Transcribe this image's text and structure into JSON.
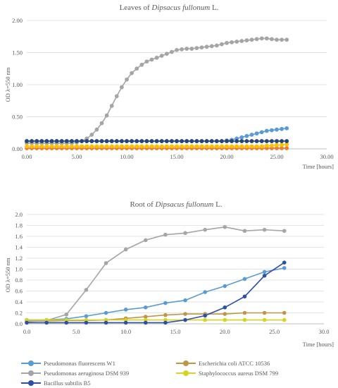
{
  "chart_data": [
    {
      "type": "line",
      "title_prefix": "Leaves of ",
      "title_italic": "Dipsacus fullonum",
      "title_suffix": " L.",
      "xlabel": "Time [hours]",
      "ylabel": "OD λ=550 nm",
      "xlim": [
        0,
        30
      ],
      "ylim": [
        0,
        2
      ],
      "x_ticks": [
        "0.00",
        "5.00",
        "10.00",
        "15.00",
        "20.00",
        "25.00",
        "30.00"
      ],
      "y_ticks": [
        "0.00",
        "0.50",
        "1.00",
        "1.50",
        "2.00"
      ],
      "grid": "horizontal",
      "x": [
        0.0,
        0.5,
        1.0,
        1.5,
        2.0,
        2.5,
        3.0,
        3.5,
        4.0,
        4.5,
        5.0,
        5.5,
        6.0,
        6.5,
        7.0,
        7.5,
        8.0,
        8.5,
        9.0,
        9.5,
        10.0,
        10.5,
        11.0,
        11.5,
        12.0,
        12.5,
        13.0,
        13.5,
        14.0,
        14.5,
        15.0,
        15.5,
        16.0,
        16.5,
        17.0,
        17.5,
        18.0,
        18.5,
        19.0,
        19.5,
        20.0,
        20.5,
        21.0,
        21.5,
        22.0,
        22.5,
        23.0,
        23.5,
        24.0,
        24.5,
        25.0,
        25.5,
        26.0
      ],
      "series": [
        {
          "color": "#5b9bd5",
          "values": [
            0.12,
            0.12,
            0.12,
            0.12,
            0.12,
            0.12,
            0.12,
            0.12,
            0.12,
            0.12,
            0.12,
            0.12,
            0.12,
            0.12,
            0.12,
            0.12,
            0.12,
            0.12,
            0.12,
            0.12,
            0.12,
            0.12,
            0.12,
            0.12,
            0.12,
            0.12,
            0.12,
            0.12,
            0.12,
            0.12,
            0.12,
            0.12,
            0.12,
            0.12,
            0.12,
            0.12,
            0.12,
            0.12,
            0.12,
            0.12,
            0.13,
            0.14,
            0.16,
            0.18,
            0.2,
            0.22,
            0.24,
            0.26,
            0.28,
            0.29,
            0.3,
            0.31,
            0.32
          ]
        },
        {
          "color": "#ed7d31",
          "values": [
            0.01,
            0.01,
            0.01,
            0.01,
            0.01,
            0.01,
            0.01,
            0.01,
            0.01,
            0.01,
            0.01,
            0.01,
            0.01,
            0.01,
            0.01,
            0.01,
            0.01,
            0.01,
            0.01,
            0.01,
            0.01,
            0.01,
            0.01,
            0.01,
            0.01,
            0.01,
            0.01,
            0.01,
            0.01,
            0.01,
            0.01,
            0.01,
            0.01,
            0.01,
            0.01,
            0.01,
            0.01,
            0.01,
            0.01,
            0.01,
            0.01,
            0.01,
            0.01,
            0.01,
            0.01,
            0.01,
            0.01,
            0.01,
            0.01,
            0.01,
            0.01,
            0.01,
            0.01
          ]
        },
        {
          "color": "#a5a5a5",
          "values": [
            0.09,
            0.09,
            0.09,
            0.09,
            0.09,
            0.09,
            0.09,
            0.09,
            0.09,
            0.09,
            0.1,
            0.12,
            0.16,
            0.22,
            0.3,
            0.4,
            0.52,
            0.67,
            0.82,
            0.96,
            1.08,
            1.18,
            1.25,
            1.31,
            1.36,
            1.39,
            1.42,
            1.45,
            1.48,
            1.51,
            1.54,
            1.55,
            1.56,
            1.56,
            1.57,
            1.58,
            1.59,
            1.6,
            1.61,
            1.63,
            1.65,
            1.66,
            1.67,
            1.68,
            1.69,
            1.7,
            1.71,
            1.72,
            1.72,
            1.71,
            1.7,
            1.7,
            1.7
          ]
        },
        {
          "color": "#ffc000",
          "values": [
            0.04,
            0.04,
            0.04,
            0.04,
            0.04,
            0.04,
            0.04,
            0.04,
            0.04,
            0.04,
            0.04,
            0.04,
            0.04,
            0.04,
            0.04,
            0.04,
            0.04,
            0.04,
            0.04,
            0.04,
            0.04,
            0.04,
            0.04,
            0.04,
            0.04,
            0.04,
            0.04,
            0.04,
            0.04,
            0.04,
            0.04,
            0.04,
            0.04,
            0.04,
            0.04,
            0.04,
            0.04,
            0.04,
            0.04,
            0.04,
            0.04,
            0.04,
            0.04,
            0.04,
            0.04,
            0.04,
            0.04,
            0.04,
            0.05,
            0.05,
            0.06,
            0.06,
            0.07
          ]
        },
        {
          "color": "#264478",
          "values": [
            0.12,
            0.12,
            0.12,
            0.12,
            0.12,
            0.12,
            0.12,
            0.12,
            0.12,
            0.12,
            0.12,
            0.12,
            0.12,
            0.12,
            0.12,
            0.12,
            0.12,
            0.12,
            0.12,
            0.12,
            0.12,
            0.12,
            0.12,
            0.12,
            0.12,
            0.12,
            0.12,
            0.12,
            0.12,
            0.12,
            0.12,
            0.12,
            0.12,
            0.12,
            0.12,
            0.12,
            0.12,
            0.12,
            0.12,
            0.12,
            0.12,
            0.12,
            0.12,
            0.12,
            0.12,
            0.12,
            0.12,
            0.12,
            0.12,
            0.12,
            0.12,
            0.12,
            0.12
          ]
        }
      ]
    },
    {
      "type": "line",
      "title_prefix": "Root of ",
      "title_italic": "Dipsacus fullonum",
      "title_suffix": " L.",
      "xlabel": "Time [hours]",
      "ylabel": "OD λ=550 nm",
      "xlim": [
        0,
        30
      ],
      "ylim": [
        0,
        2
      ],
      "x_ticks": [
        "0.0",
        "5.0",
        "10.0",
        "15.0",
        "20.0",
        "25.0",
        "30.0"
      ],
      "y_ticks": [
        "0.0",
        "0.2",
        "0.4",
        "0.6",
        "0.8",
        "1.0",
        "1.2",
        "1.4",
        "1.6",
        "1.8",
        "2.0"
      ],
      "grid": "horizontal",
      "x": [
        0,
        2,
        4,
        6,
        8,
        10,
        12,
        14,
        16,
        18,
        20,
        22,
        24,
        26
      ],
      "series": [
        {
          "name": "Pseudomonas fluorescens W1",
          "color": "#5b9bd5",
          "values": [
            0.07,
            0.07,
            0.09,
            0.14,
            0.2,
            0.26,
            0.3,
            0.38,
            0.43,
            0.58,
            0.69,
            0.82,
            0.95,
            1.02
          ]
        },
        {
          "name": "Escherichia coli ATCC 10536",
          "color": "#c0954a",
          "values": [
            0.05,
            0.05,
            0.06,
            0.06,
            0.07,
            0.1,
            0.13,
            0.16,
            0.18,
            0.18,
            0.18,
            0.2,
            0.2,
            0.2
          ]
        },
        {
          "name": "Pseudomonas aeruginosa  DSM 939",
          "color": "#a5a5a5",
          "values": [
            0.04,
            0.06,
            0.17,
            0.62,
            1.11,
            1.36,
            1.53,
            1.63,
            1.66,
            1.72,
            1.77,
            1.7,
            1.72,
            1.7
          ]
        },
        {
          "name": "Staphylococcus aureus DSM 799",
          "color": "#d4d422",
          "values": [
            0.07,
            0.07,
            0.07,
            0.07,
            0.07,
            0.07,
            0.07,
            0.07,
            0.07,
            0.07,
            0.07,
            0.07,
            0.07,
            0.07
          ]
        },
        {
          "name": "Bacillus subtilis B5",
          "color": "#2e4fa6",
          "values": [
            0.02,
            0.02,
            0.02,
            0.02,
            0.02,
            0.02,
            0.02,
            0.02,
            0.07,
            0.15,
            0.3,
            0.5,
            0.88,
            1.12
          ]
        }
      ]
    }
  ]
}
